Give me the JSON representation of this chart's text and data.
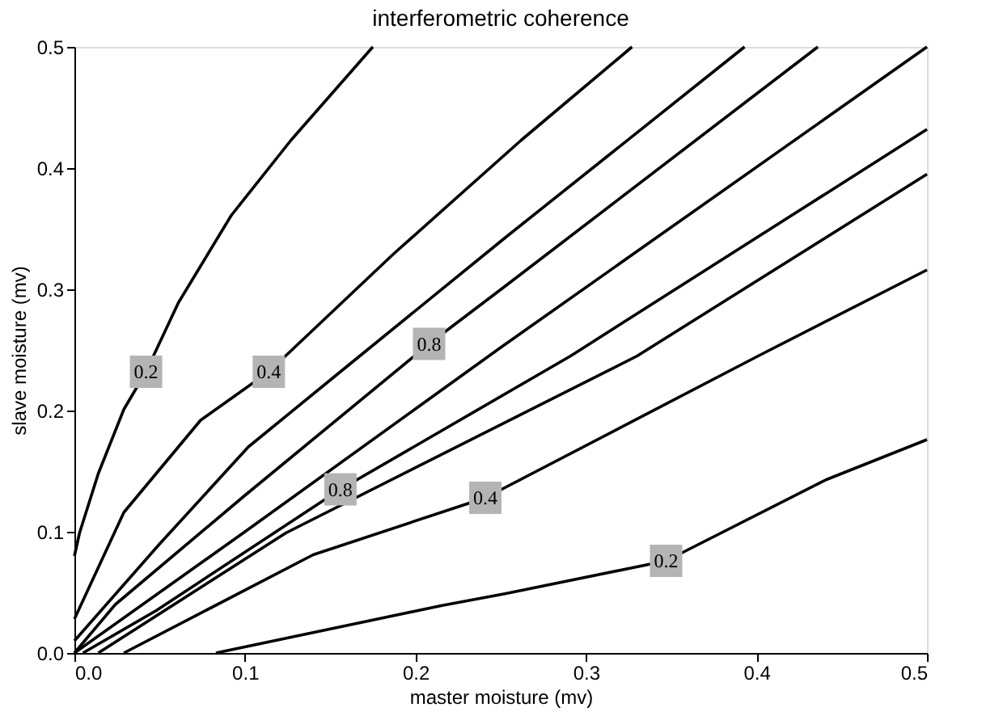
{
  "chart_data": {
    "type": "line",
    "title": "interferometric coherence",
    "xlabel": "master moisture (mv)",
    "ylabel": "slave moisture (mv)",
    "xlim": [
      0,
      0.5
    ],
    "ylim": [
      0,
      0.5
    ],
    "xticks": [
      {
        "value": 0,
        "label": "0.0"
      },
      {
        "value": 0.1,
        "label": "0.1"
      },
      {
        "value": 0.2,
        "label": "0.2"
      },
      {
        "value": 0.3,
        "label": "0.3"
      },
      {
        "value": 0.4,
        "label": "0.4"
      },
      {
        "value": 0.5,
        "label": "0.5"
      }
    ],
    "yticks": [
      {
        "value": 0,
        "label": "0.0"
      },
      {
        "value": 0.1,
        "label": "0.1"
      },
      {
        "value": 0.2,
        "label": "0.2"
      },
      {
        "value": 0.3,
        "label": "0.3"
      },
      {
        "value": 0.4,
        "label": "0.4"
      },
      {
        "value": 0.5,
        "label": "0.5"
      }
    ],
    "grid": false,
    "line_style": "solid",
    "marker": "none",
    "series": [
      {
        "name": "0.2",
        "color": "#000000",
        "x": [
          0.0,
          0.003,
          0.014,
          0.029,
          0.042,
          0.061,
          0.092,
          0.127,
          0.175
        ],
        "values": [
          0.08,
          0.099,
          0.148,
          0.201,
          0.232,
          0.289,
          0.361,
          0.423,
          0.5
        ]
      },
      {
        "name": "0.4",
        "color": "#000000",
        "x": [
          0.0,
          0.029,
          0.074,
          0.114,
          0.187,
          0.262,
          0.327
        ],
        "values": [
          0.028,
          0.116,
          0.192,
          0.232,
          0.329,
          0.423,
          0.5
        ]
      },
      {
        "color": "#000000",
        "x": [
          0.0,
          0.05,
          0.102,
          0.156,
          0.253,
          0.393
        ],
        "values": [
          0.01,
          0.09,
          0.17,
          0.232,
          0.343,
          0.5
        ]
      },
      {
        "name": "0.8",
        "color": "#000000",
        "x": [
          0.0,
          0.024,
          0.1,
          0.208,
          0.253,
          0.436
        ],
        "values": [
          0.0,
          0.04,
          0.13,
          0.255,
          0.303,
          0.5
        ]
      },
      {
        "color": "#000000",
        "x": [
          0.0,
          0.1,
          0.25,
          0.5
        ],
        "values": [
          0.0,
          0.1,
          0.252,
          0.5
        ]
      },
      {
        "name": "0.8",
        "color": "#000000",
        "x": [
          0.005,
          0.048,
          0.156,
          0.291,
          0.5
        ],
        "values": [
          0.0,
          0.035,
          0.135,
          0.245,
          0.432
        ]
      },
      {
        "color": "#000000",
        "x": [
          0.014,
          0.124,
          0.33,
          0.5
        ],
        "values": [
          0.0,
          0.099,
          0.245,
          0.395
        ]
      },
      {
        "name": "0.4",
        "color": "#000000",
        "x": [
          0.029,
          0.14,
          0.241,
          0.401,
          0.5
        ],
        "values": [
          0.0,
          0.081,
          0.128,
          0.245,
          0.316
        ]
      },
      {
        "name": "0.2",
        "color": "#000000",
        "x": [
          0.083,
          0.215,
          0.253,
          0.347,
          0.441,
          0.5
        ],
        "values": [
          0.0,
          0.039,
          0.049,
          0.076,
          0.143,
          0.176
        ]
      }
    ]
  }
}
